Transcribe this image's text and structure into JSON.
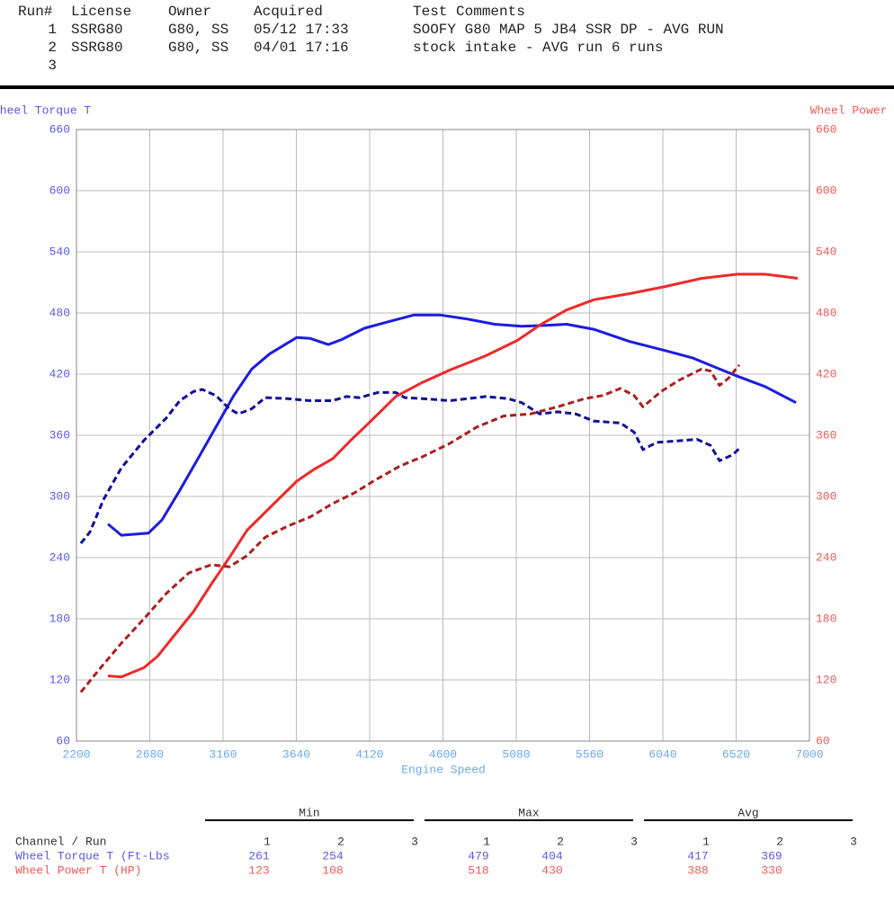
{
  "header": {
    "columns": [
      "Run#",
      "License",
      "Owner",
      "Acquired",
      "Test Comments"
    ],
    "rows": [
      [
        "1",
        "SSRG80",
        "G80, SS",
        "05/12 17:33",
        "SOOFY G80 MAP 5 JB4 SSR DP - AVG RUN"
      ],
      [
        "2",
        "SSRG80",
        "G80, SS",
        "04/01 17:16",
        "stock intake - AVG run 6 runs"
      ],
      [
        "3"
      ]
    ]
  },
  "chart_data": {
    "type": "line",
    "y_label": "Wheel Torque T",
    "y2_label": "Wheel Power T",
    "x_label": "Engine Speed",
    "xlim": [
      2200,
      7000
    ],
    "xticks": [
      2200,
      2680,
      3160,
      3640,
      4120,
      4600,
      5080,
      5560,
      6040,
      6520,
      7000
    ],
    "ylim": [
      60,
      660
    ],
    "yticks": [
      60,
      120,
      180,
      240,
      300,
      360,
      420,
      480,
      540,
      600,
      660
    ],
    "y2lim": [
      60,
      660
    ],
    "y2ticks": [
      60,
      120,
      180,
      240,
      300,
      360,
      420,
      480,
      540,
      600,
      660
    ],
    "grid": true,
    "y_color": "#5a5ae6",
    "y2_color": "#f05a5a",
    "x_color": "#6aaaf0",
    "series": [
      {
        "color": "#1c1ce0",
        "dashed": false,
        "x": [
          2406,
          2494,
          2671,
          2760,
          2877,
          2995,
          3113,
          3230,
          3348,
          3466,
          3643,
          3731,
          3849,
          3937,
          4085,
          4232,
          4408,
          4585,
          4762,
          4939,
          5116,
          5292,
          5410,
          5587,
          5822,
          6058,
          6234,
          6411,
          6529,
          6706,
          6912
        ],
        "values": [
          273,
          262,
          264,
          277,
          306,
          337,
          368,
          399,
          425,
          440,
          456,
          455,
          449,
          454,
          465,
          471,
          478,
          478,
          474,
          469,
          467,
          468,
          469,
          464,
          452,
          443,
          436,
          425,
          418,
          408,
          392
        ]
      },
      {
        "color": "#10109a",
        "dashed": true,
        "x": [
          2229,
          2288,
          2377,
          2494,
          2642,
          2789,
          2877,
          2966,
          3024,
          3113,
          3201,
          3260,
          3348,
          3436,
          3584,
          3731,
          3878,
          3967,
          4055,
          4173,
          4291,
          4350,
          4467,
          4644,
          4762,
          4880,
          5027,
          5116,
          5233,
          5351,
          5469,
          5587,
          5763,
          5852,
          5910,
          6000,
          6175,
          6264,
          6352,
          6411,
          6499,
          6540
        ],
        "values": [
          254,
          265,
          297,
          328,
          355,
          377,
          394,
          403,
          405,
          399,
          386,
          381,
          386,
          397,
          396,
          394,
          394,
          398,
          397,
          402,
          402,
          397,
          396,
          394,
          396,
          398,
          396,
          392,
          381,
          383,
          381,
          374,
          372,
          363,
          346,
          353,
          355,
          356,
          350,
          335,
          341,
          347
        ]
      },
      {
        "color": "#ee2a2a",
        "dashed": false,
        "axis": "y2",
        "x": [
          2406,
          2494,
          2642,
          2730,
          2848,
          2966,
          3083,
          3201,
          3318,
          3466,
          3643,
          3760,
          3878,
          3996,
          4114,
          4291,
          4467,
          4644,
          4880,
          5086,
          5233,
          5410,
          5587,
          5822,
          6058,
          6293,
          6529,
          6706,
          6823,
          6923
        ],
        "values": [
          124,
          123,
          132,
          143,
          165,
          187,
          214,
          240,
          267,
          289,
          315,
          327,
          337,
          355,
          372,
          398,
          412,
          424,
          438,
          453,
          468,
          483,
          493,
          499,
          506,
          514,
          518,
          518,
          516,
          514
        ]
      },
      {
        "color": "#a82020",
        "dashed": true,
        "axis": "y2",
        "x": [
          2229,
          2347,
          2494,
          2642,
          2789,
          2936,
          3083,
          3201,
          3318,
          3436,
          3584,
          3731,
          3878,
          4026,
          4144,
          4320,
          4467,
          4644,
          4821,
          4998,
          5175,
          5351,
          5528,
          5645,
          5763,
          5852,
          5910,
          6028,
          6146,
          6293,
          6352,
          6411,
          6470,
          6540
        ],
        "values": [
          108,
          130,
          156,
          180,
          205,
          225,
          233,
          231,
          242,
          260,
          271,
          280,
          293,
          304,
          315,
          330,
          339,
          352,
          368,
          379,
          381,
          388,
          396,
          399,
          406,
          399,
          388,
          403,
          414,
          425,
          423,
          409,
          416,
          429
        ]
      }
    ]
  },
  "stats": {
    "groups": [
      "Min",
      "Max",
      "Avg"
    ],
    "label": "Channel / Run",
    "runs": [
      "1",
      "2",
      "3"
    ],
    "rows": [
      {
        "name": "Wheel Torque T (Ft-Lbs",
        "color": "#5a5ae6",
        "groups": [
          [
            261,
            254
          ],
          [
            479,
            404
          ],
          [
            417,
            369
          ]
        ]
      },
      {
        "name": "Wheel Power T (HP)",
        "color": "#f05a5a",
        "groups": [
          [
            123,
            108
          ],
          [
            518,
            430
          ],
          [
            388,
            330
          ]
        ]
      }
    ]
  }
}
